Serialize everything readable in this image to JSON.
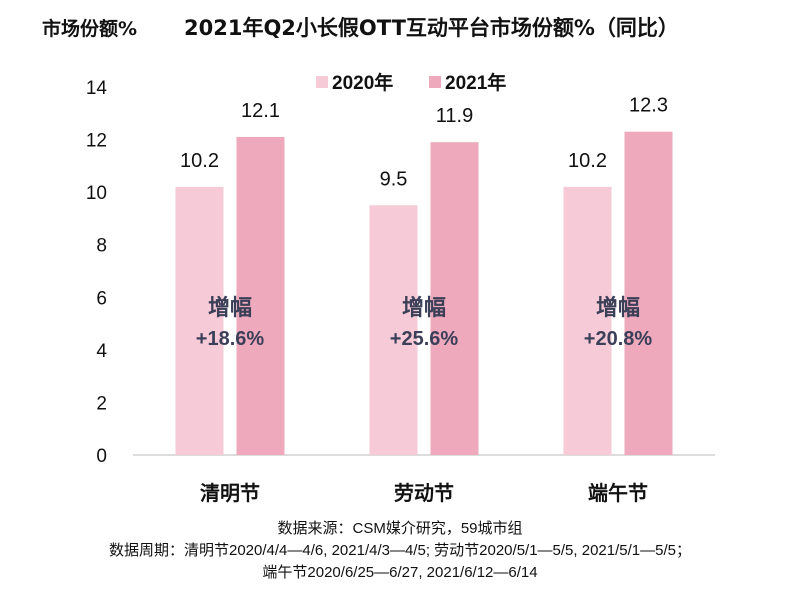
{
  "chart_data": {
    "type": "bar",
    "title": "2021年Q2小长假OTT互动平台市场份额%（同比）",
    "ylabel": "市场份额%",
    "xlabel": "",
    "categories": [
      "清明节",
      "劳动节",
      "端午节"
    ],
    "series": [
      {
        "name": "2020年",
        "values": [
          10.2,
          9.5,
          10.2
        ],
        "color": "#f6cad7"
      },
      {
        "name": "2021年",
        "values": [
          12.1,
          11.9,
          12.3
        ],
        "color": "#eea9bc"
      }
    ],
    "ylim": [
      0,
      14
    ],
    "yticks": [
      0,
      2,
      4,
      6,
      8,
      10,
      12,
      14
    ],
    "grid": false,
    "legend": "top-center",
    "annotations": [
      {
        "label": "增幅",
        "value": "+18.6%"
      },
      {
        "label": "增幅",
        "value": "+25.6%"
      },
      {
        "label": "增幅",
        "value": "+20.8%"
      }
    ]
  },
  "footer": {
    "source": "数据来源：CSM媒介研究，59城市组",
    "period_line1": "数据周期：清明节2020/4/4—4/6, 2021/4/3—4/5; 劳动节2020/5/1—5/5, 2021/5/1—5/5；",
    "period_line2": "端午节2020/6/25—6/27, 2021/6/12—6/14"
  }
}
